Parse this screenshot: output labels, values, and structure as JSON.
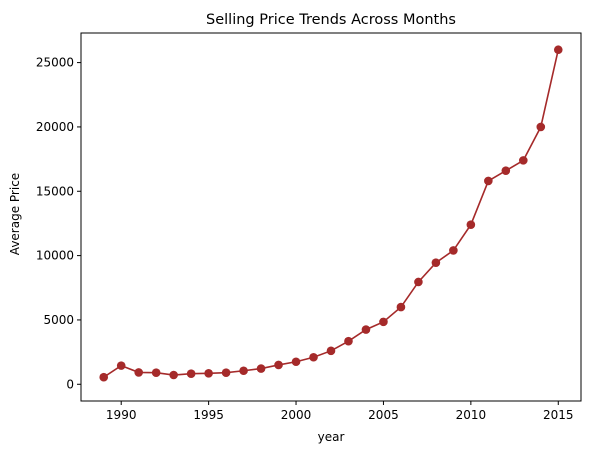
{
  "chart_data": {
    "type": "line",
    "title": "Selling Price Trends Across Months",
    "xlabel": "year",
    "ylabel": "Average Price",
    "x": [
      1989,
      1990,
      1991,
      1992,
      1993,
      1994,
      1995,
      1996,
      1997,
      1998,
      1999,
      2000,
      2001,
      2002,
      2003,
      2004,
      2005,
      2006,
      2007,
      2008,
      2009,
      2010,
      2011,
      2012,
      2013,
      2014,
      2015
    ],
    "series": [
      {
        "values": [
          550,
          1450,
          920,
          900,
          720,
          820,
          850,
          900,
          1050,
          1220,
          1500,
          1750,
          2100,
          2600,
          3350,
          4250,
          4850,
          6000,
          7950,
          9450,
          10400,
          12400,
          15800,
          16600,
          17400,
          20000,
          26000
        ],
        "color": "#a52a2a",
        "marker": "circle"
      }
    ],
    "xlim": [
      1987.7,
      2016.3
    ],
    "ylim": [
      -1300,
      27300
    ],
    "xticks": [
      1990,
      1995,
      2000,
      2005,
      2010,
      2015
    ],
    "yticks": [
      0,
      5000,
      10000,
      15000,
      20000,
      25000
    ],
    "grid": false,
    "legend": "none"
  }
}
